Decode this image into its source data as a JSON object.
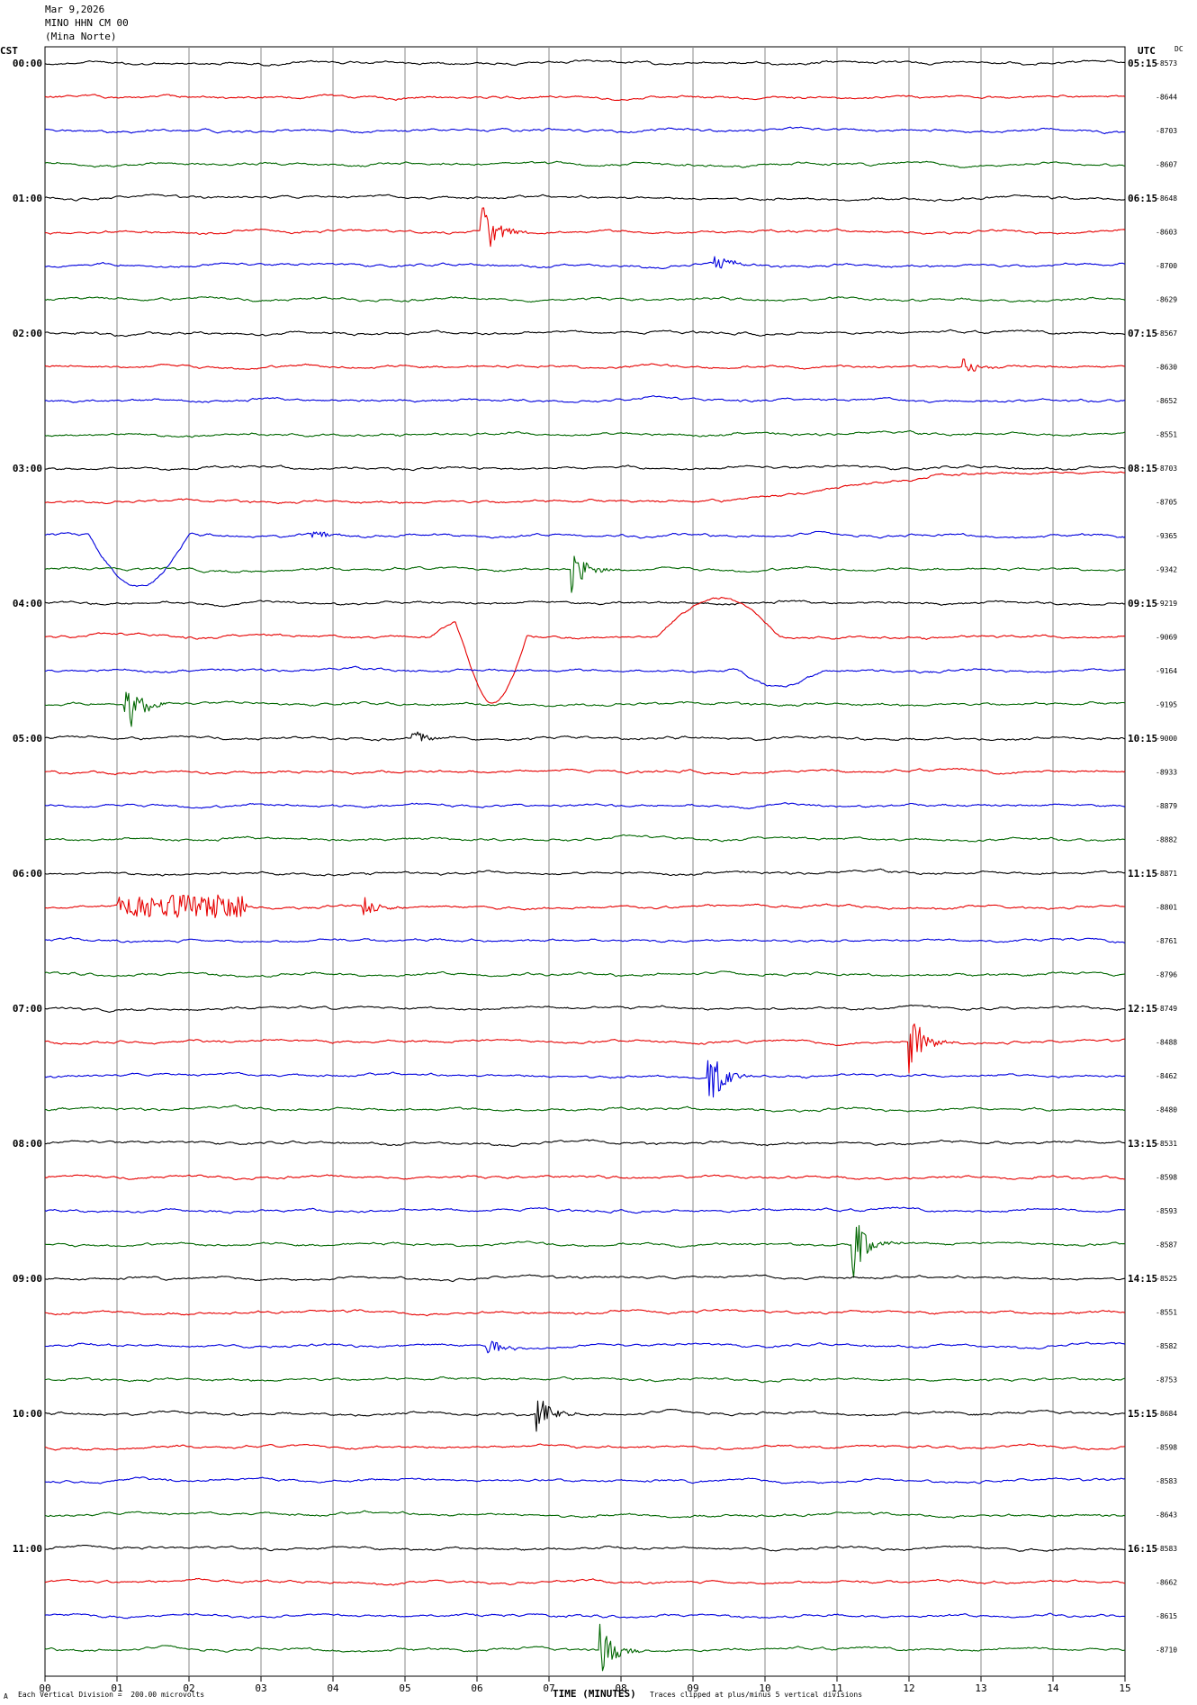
{
  "header": {
    "date": "Mar 9,2026",
    "station": "MINO HHN CM 00",
    "site": "(Mina Norte)"
  },
  "left_tz": "CST",
  "right_tz": "UTC",
  "dc_label": "DC",
  "footer": {
    "scale": "Each Vertical Division =  200.00 microvolts",
    "clip": "Traces clipped at plus/minus 5 vertical divisions",
    "mark": "A"
  },
  "colors": [
    "#000000",
    "#e60000",
    "#0000dd",
    "#006600"
  ],
  "chart_data": {
    "type": "line",
    "xlabel": "TIME (MINUTES)",
    "x_ticks": [
      "00",
      "01",
      "02",
      "03",
      "04",
      "05",
      "06",
      "07",
      "08",
      "09",
      "10",
      "11",
      "12",
      "13",
      "14",
      "15"
    ],
    "xlim": [
      0,
      15
    ],
    "grid": true,
    "left_time_labels": [
      "00:00",
      "01:00",
      "02:00",
      "03:00",
      "04:00",
      "05:00",
      "06:00",
      "07:00",
      "08:00",
      "09:00",
      "10:00",
      "11:00"
    ],
    "right_time_labels": [
      "05:15",
      "06:15",
      "07:15",
      "08:15",
      "09:15",
      "10:15",
      "11:15",
      "12:15",
      "13:15",
      "14:15",
      "15:15",
      "16:15"
    ],
    "dc_values": [
      8573,
      8644,
      8703,
      8607,
      8648,
      8603,
      8700,
      8629,
      8567,
      8630,
      8652,
      8551,
      8703,
      8705,
      9365,
      9342,
      9219,
      9069,
      9164,
      9195,
      9000,
      8933,
      8879,
      8882,
      8871,
      8801,
      8761,
      8796,
      8749,
      8488,
      8462,
      8480,
      8531,
      8598,
      8593,
      8587,
      8525,
      8551,
      8582,
      8753,
      8684,
      8598,
      8583,
      8643,
      8583,
      8662,
      8615,
      8710
    ],
    "events": [
      {
        "trace": 5,
        "minute": 6.05,
        "type": "burst",
        "amp": 1.2
      },
      {
        "trace": 6,
        "minute": 9.3,
        "type": "burst",
        "amp": 0.3
      },
      {
        "trace": 9,
        "minute": 12.75,
        "type": "burst",
        "amp": 0.3
      },
      {
        "trace": 13,
        "minute": 9.4,
        "type": "ramp",
        "to_minute": 15,
        "amp": -0.7
      },
      {
        "trace": 14,
        "minute": 0.6,
        "type": "dip",
        "to_minute": 2.0,
        "amp": 1.5
      },
      {
        "trace": 14,
        "minute": 3.7,
        "type": "burst",
        "amp": 0.2
      },
      {
        "trace": 15,
        "minute": 7.3,
        "type": "burst",
        "amp": 0.9
      },
      {
        "trace": 17,
        "minute": 5.7,
        "type": "dip",
        "to_minute": 6.7,
        "amp": 2.0
      },
      {
        "trace": 17,
        "minute": 5.75,
        "type": "rise",
        "amp": -0.5
      },
      {
        "trace": 17,
        "minute": 8.5,
        "type": "ramp2",
        "to_minute": 10.2,
        "amp": -1.2
      },
      {
        "trace": 18,
        "minute": 9.6,
        "type": "dip",
        "to_minute": 10.8,
        "amp": 0.5
      },
      {
        "trace": 19,
        "minute": 1.1,
        "type": "burst",
        "amp": 1.1
      },
      {
        "trace": 20,
        "minute": 5.1,
        "type": "burst",
        "amp": 0.3
      },
      {
        "trace": 25,
        "minute": 1.0,
        "type": "noise",
        "to_minute": 2.8,
        "amp": 0.35
      },
      {
        "trace": 25,
        "minute": 4.4,
        "type": "burst",
        "amp": 0.4
      },
      {
        "trace": 29,
        "minute": 12.0,
        "type": "burst",
        "amp": 1.0
      },
      {
        "trace": 30,
        "minute": 9.2,
        "type": "burst",
        "amp": 1.2
      },
      {
        "trace": 35,
        "minute": 11.2,
        "type": "burst",
        "amp": 1.2
      },
      {
        "trace": 38,
        "minute": 6.1,
        "type": "burst",
        "amp": 0.5
      },
      {
        "trace": 40,
        "minute": 6.8,
        "type": "burst",
        "amp": 0.7
      },
      {
        "trace": 47,
        "minute": 7.7,
        "type": "burst",
        "amp": 0.9
      }
    ]
  }
}
